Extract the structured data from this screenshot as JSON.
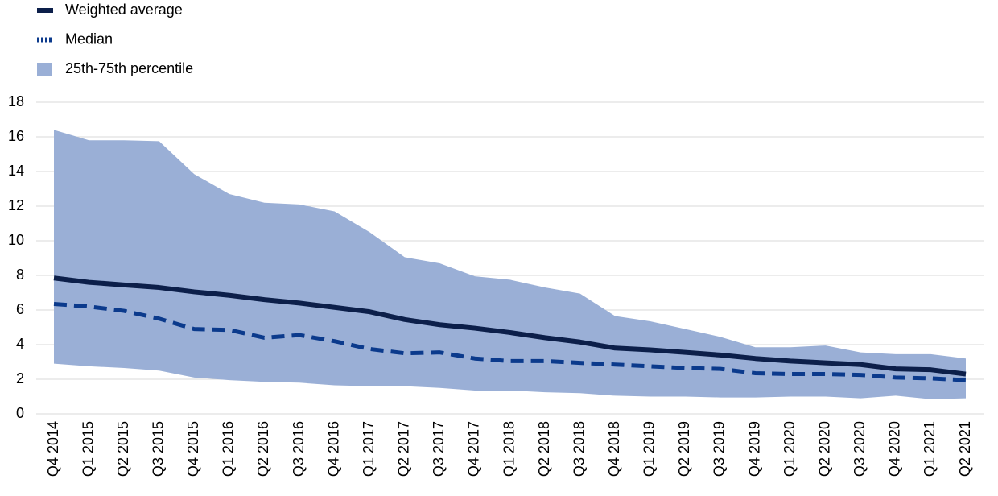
{
  "chart_data": {
    "type": "line",
    "categories": [
      "Q4 2014",
      "Q1 2015",
      "Q2 2015",
      "Q3 2015",
      "Q4 2015",
      "Q1 2016",
      "Q2 2016",
      "Q3 2016",
      "Q4 2016",
      "Q1 2017",
      "Q2 2017",
      "Q3 2017",
      "Q4 2017",
      "Q1 2018",
      "Q2 2018",
      "Q3 2018",
      "Q4 2018",
      "Q1 2019",
      "Q2 2019",
      "Q3 2019",
      "Q4 2019",
      "Q1 2020",
      "Q2 2020",
      "Q3 2020",
      "Q4 2020",
      "Q1 2021",
      "Q2 2021"
    ],
    "series": [
      {
        "name": "Weighted average",
        "color": "#0c1f4a",
        "style": "solid",
        "values": [
          7.85,
          7.6,
          7.45,
          7.3,
          7.05,
          6.85,
          6.6,
          6.4,
          6.15,
          5.9,
          5.45,
          5.15,
          4.95,
          4.7,
          4.4,
          4.15,
          3.8,
          3.7,
          3.55,
          3.4,
          3.2,
          3.05,
          2.95,
          2.85,
          2.6,
          2.55,
          2.3
        ]
      },
      {
        "name": "Median",
        "color": "#0b3a8c",
        "style": "dashed",
        "values": [
          6.35,
          6.2,
          5.95,
          5.5,
          4.9,
          4.85,
          4.4,
          4.55,
          4.2,
          3.75,
          3.5,
          3.55,
          3.2,
          3.05,
          3.05,
          2.95,
          2.85,
          2.75,
          2.65,
          2.6,
          2.35,
          2.3,
          2.3,
          2.25,
          2.1,
          2.05,
          1.95
        ]
      },
      {
        "name": "25th-75th percentile",
        "color": "#9aafd6",
        "style": "band",
        "upper": [
          16.4,
          15.8,
          15.8,
          15.75,
          13.85,
          12.7,
          12.2,
          12.1,
          11.7,
          10.5,
          9.05,
          8.7,
          7.95,
          7.75,
          7.3,
          6.95,
          5.65,
          5.35,
          4.9,
          4.45,
          3.85,
          3.85,
          3.95,
          3.55,
          3.45,
          3.45,
          3.2
        ],
        "lower": [
          2.9,
          2.75,
          2.65,
          2.5,
          2.1,
          1.95,
          1.85,
          1.8,
          1.65,
          1.6,
          1.6,
          1.5,
          1.35,
          1.35,
          1.25,
          1.2,
          1.05,
          1.0,
          1.0,
          0.95,
          0.95,
          1.0,
          1.0,
          0.9,
          1.05,
          0.85,
          0.9
        ]
      }
    ],
    "ylim": [
      0,
      18
    ],
    "yticks": [
      0,
      2,
      4,
      6,
      8,
      10,
      12,
      14,
      16,
      18
    ],
    "grid": true
  }
}
